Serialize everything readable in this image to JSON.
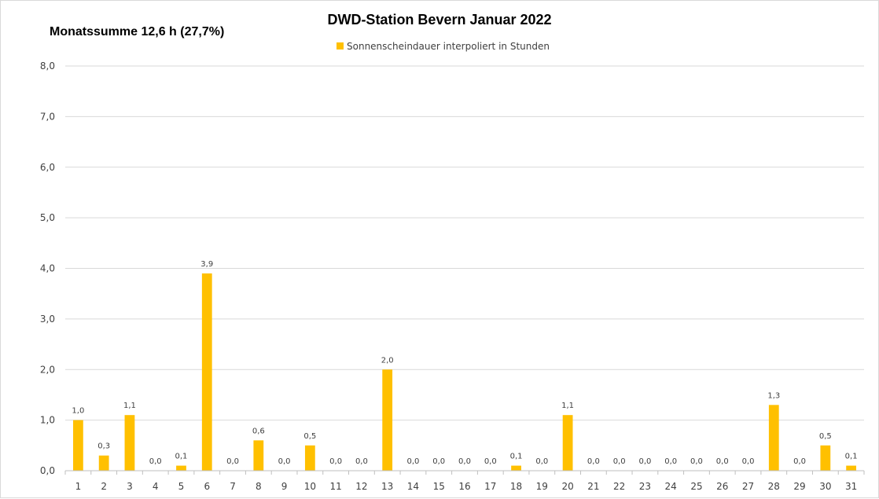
{
  "chart_data": {
    "type": "bar",
    "title": "DWD-Station  Bevern Januar 2022",
    "subtitle": "Monatssumme 12,6 h (27,7%)",
    "categories": [
      "1",
      "2",
      "3",
      "4",
      "5",
      "6",
      "7",
      "8",
      "9",
      "10",
      "11",
      "12",
      "13",
      "14",
      "15",
      "16",
      "17",
      "18",
      "19",
      "20",
      "21",
      "22",
      "23",
      "24",
      "25",
      "26",
      "27",
      "28",
      "29",
      "30",
      "31"
    ],
    "series": [
      {
        "name": "Sonnenscheindauer interpoliert in Stunden",
        "values": [
          1.0,
          0.3,
          1.1,
          0.0,
          0.1,
          3.9,
          0.0,
          0.6,
          0.0,
          0.5,
          0.0,
          0.0,
          2.0,
          0.0,
          0.0,
          0.0,
          0.0,
          0.1,
          0.0,
          1.1,
          0.0,
          0.0,
          0.0,
          0.0,
          0.0,
          0.0,
          0.0,
          1.3,
          0.0,
          0.5,
          0.1
        ],
        "value_labels": [
          "1,0",
          "0,3",
          "1,1",
          "0,0",
          "0,1",
          "3,9",
          "0,0",
          "0,6",
          "0,0",
          "0,5",
          "0,0",
          "0,0",
          "2,0",
          "0,0",
          "0,0",
          "0,0",
          "0,0",
          "0,1",
          "0,0",
          "1,1",
          "0,0",
          "0,0",
          "0,0",
          "0,0",
          "0,0",
          "0,0",
          "0,0",
          "1,3",
          "0,0",
          "0,5",
          "0,1"
        ]
      }
    ],
    "ylim": [
      0,
      8
    ],
    "yticks": [
      0,
      1,
      2,
      3,
      4,
      5,
      6,
      7,
      8
    ],
    "ytick_labels": [
      "0,0",
      "1,0",
      "2,0",
      "3,0",
      "4,0",
      "5,0",
      "6,0",
      "7,0",
      "8,0"
    ],
    "xlabel": "",
    "ylabel": "",
    "grid": true,
    "legend_position": "top",
    "colors": {
      "bar": "#FFC000"
    }
  }
}
